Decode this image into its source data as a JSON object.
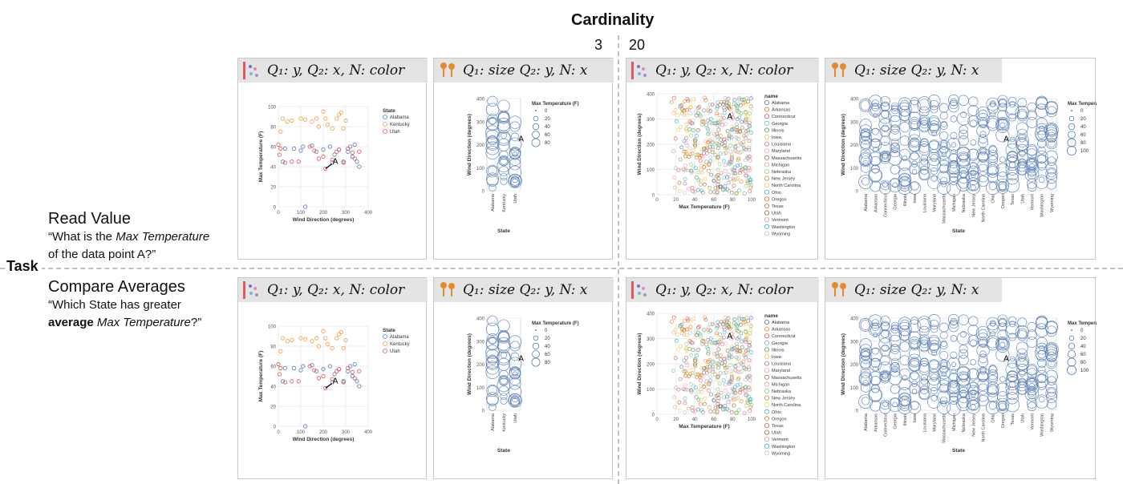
{
  "title": "Cardinality",
  "cardinality_values": [
    "3",
    "20"
  ],
  "task_label": "Task",
  "rows": [
    {
      "name": "Read Value",
      "question_pre": "“What is the ",
      "question_em": "Max Temperature",
      "question_post": "of the data point A?”"
    },
    {
      "name": "Compare Averages",
      "question_pre": "“Which State has greater",
      "question_bold": "average",
      "question_em": "Max Temperature",
      "question_post": "?”"
    }
  ],
  "encodings": {
    "color": "Q₁: y, Q₂: x, N: color",
    "size": "Q₁: size  Q₂: y, N: x"
  },
  "point_label": "A",
  "colors": {
    "blue": "#5b7fb5",
    "orange": "#f2a04a",
    "red": "#e0585c",
    "palette20": [
      "#4c78a8",
      "#f58518",
      "#e45756",
      "#72b7b2",
      "#54a24b",
      "#eeca3b",
      "#b279a2",
      "#ff9da6",
      "#9d755d",
      "#bab0ac",
      "#88d27a",
      "#b6992d",
      "#f2cf5b",
      "#49a9cf",
      "#e17a28",
      "#d6616b",
      "#8c6d31",
      "#c49c94",
      "#17becf",
      "#aec7e8"
    ]
  },
  "legend_titles": {
    "state": "State",
    "name": "name",
    "max_temp": "Max Temperature (F)"
  },
  "states3": [
    "Alabama",
    "Kentucky",
    "Utah"
  ],
  "states20": [
    "Alabama",
    "Arkansas",
    "Connecticut",
    "Georgia",
    "Illinois",
    "Iowa",
    "Louisiana",
    "Maryland",
    "Massachusetts",
    "Michigan",
    "Nebraska",
    "New Jersey",
    "North Carolina",
    "Ohio",
    "Oregon",
    "Texas",
    "Utah",
    "Vermont",
    "Washington",
    "Wyoming"
  ],
  "size_legend_3": [
    "0",
    "20",
    "40",
    "60",
    "80"
  ],
  "size_legend_20": [
    "0",
    "20",
    "40",
    "60",
    "80",
    "100"
  ],
  "chart_data": [
    {
      "id": "scatter3",
      "type": "scatter",
      "title": "",
      "xlabel": "Wind Direction (degrees)",
      "ylabel": "Max Temperature (F)",
      "xlim": [
        0,
        400
      ],
      "ylim": [
        0,
        100
      ],
      "x_ticks": [
        "0",
        "100",
        "200",
        "300",
        "400"
      ],
      "y_ticks": [
        "0",
        "20",
        "40",
        "60",
        "80",
        "100"
      ],
      "series": [
        {
          "name": "Alabama",
          "points": [
            [
              30,
              58
            ],
            [
              70,
              58
            ],
            [
              110,
              60
            ],
            [
              150,
              61
            ],
            [
              170,
              55
            ],
            [
              200,
              57
            ],
            [
              230,
              60
            ],
            [
              250,
              52
            ],
            [
              270,
              57
            ],
            [
              290,
              45
            ],
            [
              310,
              55
            ],
            [
              320,
              60
            ],
            [
              330,
              50
            ],
            [
              350,
              45
            ],
            [
              360,
              40
            ],
            [
              20,
              45
            ],
            [
              240,
              44
            ],
            [
              100,
              56
            ],
            [
              120,
              0
            ],
            [
              340,
              62
            ]
          ]
        },
        {
          "name": "Kentucky",
          "points": [
            [
              10,
              75
            ],
            [
              20,
              88
            ],
            [
              40,
              85
            ],
            [
              60,
              86
            ],
            [
              100,
              88
            ],
            [
              120,
              87
            ],
            [
              150,
              85
            ],
            [
              170,
              88
            ],
            [
              200,
              95
            ],
            [
              220,
              82
            ],
            [
              240,
              78
            ],
            [
              260,
              88
            ],
            [
              270,
              92
            ],
            [
              280,
              94
            ],
            [
              300,
              86
            ],
            [
              290,
              78
            ],
            [
              180,
              80
            ],
            [
              210,
              88
            ]
          ]
        },
        {
          "name": "Utah",
          "points": [
            [
              0,
              62
            ],
            [
              10,
              58
            ],
            [
              30,
              44
            ],
            [
              60,
              45
            ],
            [
              140,
              60
            ],
            [
              160,
              56
            ],
            [
              180,
              48
            ],
            [
              200,
              50
            ],
            [
              210,
              38
            ],
            [
              240,
              47
            ],
            [
              260,
              55
            ],
            [
              270,
              57
            ],
            [
              290,
              44
            ],
            [
              310,
              58
            ],
            [
              330,
              54
            ],
            [
              340,
              48
            ],
            [
              360,
              55
            ],
            [
              90,
              45
            ],
            [
              5,
              52
            ]
          ]
        }
      ]
    },
    {
      "id": "size3",
      "type": "scatter",
      "xlabel": "State",
      "ylabel": "Wind Direction (degrees)",
      "ylim": [
        0,
        400
      ],
      "y_ticks": [
        "0",
        "100",
        "200",
        "300",
        "400"
      ],
      "categories": [
        "Alabama",
        "Kentucky",
        "Utah"
      ]
    },
    {
      "id": "scatter20",
      "type": "scatter",
      "xlabel": "Max Temperature (F)",
      "ylabel": "Wind Direction (degrees)",
      "xlim": [
        0,
        100
      ],
      "ylim": [
        0,
        400
      ],
      "x_ticks": [
        "0",
        "20",
        "40",
        "60",
        "80",
        "100"
      ],
      "y_ticks": [
        "0",
        "100",
        "200",
        "300",
        "400"
      ]
    },
    {
      "id": "size20",
      "type": "scatter",
      "xlabel": "State",
      "ylabel": "Wind Direction (degrees)",
      "ylim": [
        0,
        400
      ],
      "y_ticks": [
        "0",
        "100",
        "200",
        "300",
        "400"
      ],
      "categories": [
        "Alabama",
        "Arkansas",
        "Connecticut",
        "Georgia",
        "Illinois",
        "Iowa",
        "Louisiana",
        "Maryland",
        "Massachusetts",
        "Michigan",
        "Nebraska",
        "New Jersey",
        "North Carolina",
        "Ohio",
        "Oregon",
        "Texas",
        "Utah",
        "Vermont",
        "Washington",
        "Wyoming"
      ]
    }
  ]
}
